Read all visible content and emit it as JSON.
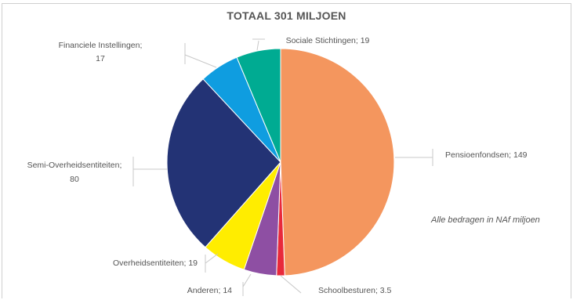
{
  "title": "TOTAAL 301 MILJOEN",
  "note": "Alle bedragen in NAf miljoen",
  "chart_data": {
    "type": "pie",
    "title": "TOTAAL 301 MILJOEN",
    "total": 301,
    "slices": [
      {
        "label": "Pensioenfondsen; 149",
        "name": "Pensioenfondsen",
        "value": 149,
        "color": "#f4965e"
      },
      {
        "label": "Schoolbesturen; 3.5",
        "name": "Schoolbesturen",
        "value": 3.5,
        "color": "#e8293b"
      },
      {
        "label": "Anderen; 14",
        "name": "Anderen",
        "value": 14,
        "color": "#8e4fa3"
      },
      {
        "label": "Overheidsentiteiten; 19",
        "name": "Overheidsentiteiten",
        "value": 19,
        "color": "#ffed00"
      },
      {
        "label": [
          "Semi-Overheidsentiteiten;",
          "80"
        ],
        "name": "Semi-Overheidsentiteiten",
        "value": 80,
        "color": "#233375"
      },
      {
        "label": [
          "Financiele Instellingen;",
          "17"
        ],
        "name": "Financiele Instellingen",
        "value": 17,
        "color": "#0f9de0"
      },
      {
        "label": "Sociale Stichtingen; 19",
        "name": "Sociale Stichtingen",
        "value": 19,
        "color": "#00ab92"
      }
    ]
  }
}
